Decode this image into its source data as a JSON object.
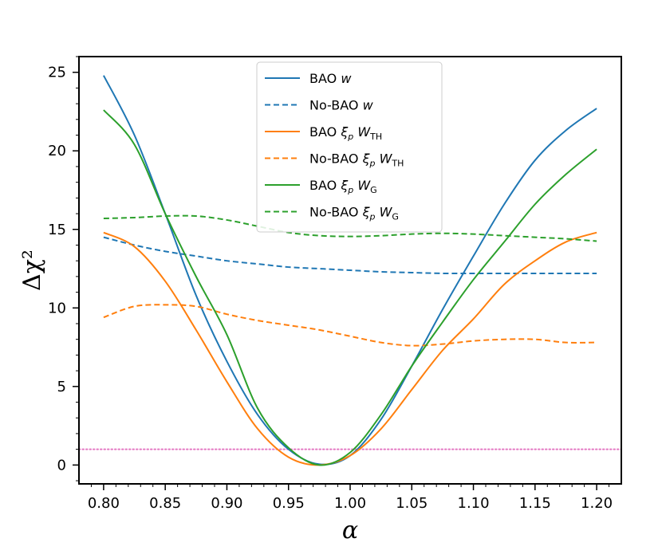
{
  "chart_data": {
    "type": "line",
    "title": "",
    "xlabel": "α",
    "ylabel": "Δχ²",
    "xlim": [
      0.78,
      1.22
    ],
    "ylim": [
      -1.2,
      26.0
    ],
    "xticks": [
      0.8,
      0.85,
      0.9,
      0.95,
      1.0,
      1.05,
      1.1,
      1.15,
      1.2
    ],
    "xtick_labels": [
      "0.80",
      "0.85",
      "0.90",
      "0.95",
      "1.00",
      "1.05",
      "1.10",
      "1.15",
      "1.20"
    ],
    "yticks": [
      0,
      5,
      10,
      15,
      20,
      25
    ],
    "ytick_labels": [
      "0",
      "5",
      "10",
      "15",
      "20",
      "25"
    ],
    "legend_position": "top-center",
    "x": [
      0.8,
      0.825,
      0.85,
      0.875,
      0.9,
      0.925,
      0.95,
      0.975,
      1.0,
      1.025,
      1.05,
      1.075,
      1.1,
      1.125,
      1.15,
      1.175,
      1.2
    ],
    "series": [
      {
        "name": "BAO w",
        "legend_main": "BAO",
        "legend_math": "w",
        "legend_sub": "",
        "color": "#1f77b4",
        "dash": "solid",
        "values": [
          24.8,
          21.0,
          16.0,
          10.8,
          6.6,
          3.2,
          1.0,
          0.05,
          0.6,
          2.9,
          6.3,
          9.9,
          13.3,
          16.6,
          19.4,
          21.3,
          22.7
        ]
      },
      {
        "name": "No-BAO w",
        "legend_main": "No-BAO",
        "legend_math": "w",
        "legend_sub": "",
        "color": "#1f77b4",
        "dash": "dashed",
        "values": [
          14.5,
          14.0,
          13.6,
          13.3,
          13.0,
          12.8,
          12.6,
          12.5,
          12.4,
          12.3,
          12.25,
          12.2,
          12.2,
          12.2,
          12.2,
          12.2,
          12.2
        ]
      },
      {
        "name": "BAO ξp WTH",
        "legend_main": "BAO",
        "legend_math": "ξp WTH",
        "legend_sub": "TH",
        "color": "#ff7f0e",
        "dash": "solid",
        "values": [
          14.8,
          13.9,
          11.7,
          8.6,
          5.3,
          2.3,
          0.5,
          0.0,
          0.6,
          2.3,
          4.8,
          7.3,
          9.3,
          11.5,
          13.0,
          14.2,
          14.8
        ]
      },
      {
        "name": "No-BAO ξp WTH",
        "legend_main": "No-BAO",
        "legend_math": "ξp WTH",
        "legend_sub": "TH",
        "color": "#ff7f0e",
        "dash": "dashed",
        "values": [
          9.4,
          10.1,
          10.2,
          10.1,
          9.6,
          9.2,
          8.9,
          8.6,
          8.2,
          7.8,
          7.6,
          7.7,
          7.9,
          8.0,
          8.0,
          7.8,
          7.8
        ]
      },
      {
        "name": "BAO ξp WG",
        "legend_main": "BAO",
        "legend_math": "ξp WG",
        "legend_sub": "G",
        "color": "#2ca02c",
        "dash": "solid",
        "values": [
          22.6,
          20.4,
          16.0,
          12.0,
          8.3,
          3.6,
          1.1,
          0.0,
          0.8,
          3.2,
          6.3,
          9.1,
          11.8,
          14.2,
          16.6,
          18.5,
          20.1
        ]
      },
      {
        "name": "No-BAO ξp WG",
        "legend_main": "No-BAO",
        "legend_math": "ξp WG",
        "legend_sub": "G",
        "color": "#2ca02c",
        "dash": "dashed",
        "values": [
          15.7,
          15.75,
          15.85,
          15.85,
          15.6,
          15.2,
          14.8,
          14.6,
          14.55,
          14.6,
          14.7,
          14.75,
          14.7,
          14.6,
          14.5,
          14.4,
          14.25
        ]
      }
    ],
    "reference_line": {
      "y": 1.0,
      "color": "#e377c2",
      "style": "dotted"
    }
  }
}
